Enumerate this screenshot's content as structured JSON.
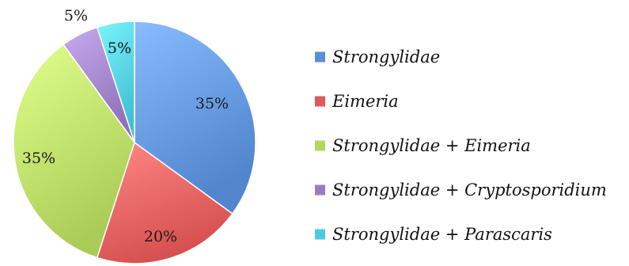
{
  "chart_data": {
    "type": "pie",
    "title": "",
    "legend_position": "right",
    "slices": [
      {
        "name": "Strongylidae",
        "value": 35,
        "label": "35%",
        "color": "#5b8fd6"
      },
      {
        "name": "Eimeria",
        "value": 20,
        "label": "20%",
        "color": "#df5a58"
      },
      {
        "name": "Strongylidae + Eimeria",
        "value": 35,
        "label": "35%",
        "color": "#b4d660"
      },
      {
        "name": "Strongylidae + Cryptosporidium",
        "value": 5,
        "label": "5%",
        "color": "#9a7cc2"
      },
      {
        "name": "Strongylidae + Parascaris",
        "value": 5,
        "label": "5%",
        "color": "#4dc9df"
      }
    ]
  }
}
